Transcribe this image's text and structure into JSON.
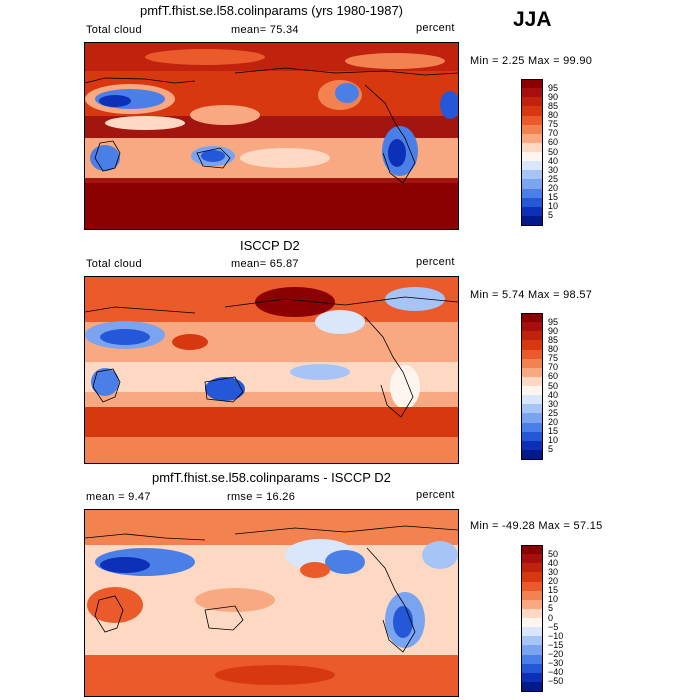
{
  "season": "JJA",
  "panels": [
    {
      "id": "model",
      "title": "pmfT.fhist.se.l58.colinparams (yrs 1980-1987)",
      "left_label": "Total cloud",
      "mid_label": "mean=  75.34",
      "right_label": "percent",
      "minmax": "Min =   2.25 Max =  99.90",
      "levels": [
        "95",
        "90",
        "85",
        "80",
        "75",
        "70",
        "60",
        "50",
        "40",
        "30",
        "25",
        "20",
        "15",
        "10",
        "5"
      ],
      "colors": [
        "#8b0000",
        "#a50f0f",
        "#c0220e",
        "#d8380f",
        "#ea5a2a",
        "#f2824f",
        "#f8a982",
        "#fdd9c4",
        "#fef5ef",
        "#d9e6fb",
        "#a7c4f7",
        "#7aa3f0",
        "#4b7fe8",
        "#2458d8",
        "#0c30b8",
        "#001a8a"
      ]
    },
    {
      "id": "obs",
      "title": "ISCCP D2",
      "left_label": "Total cloud",
      "mid_label": "mean=  65.87",
      "right_label": "percent",
      "minmax": "Min =   5.74 Max =  98.57",
      "levels": [
        "95",
        "90",
        "85",
        "80",
        "75",
        "70",
        "60",
        "50",
        "40",
        "30",
        "25",
        "20",
        "15",
        "10",
        "5"
      ],
      "colors": [
        "#8b0000",
        "#a50f0f",
        "#c0220e",
        "#d8380f",
        "#ea5a2a",
        "#f2824f",
        "#f8a982",
        "#fdd9c4",
        "#fef5ef",
        "#d9e6fb",
        "#a7c4f7",
        "#7aa3f0",
        "#4b7fe8",
        "#2458d8",
        "#0c30b8",
        "#001a8a"
      ]
    },
    {
      "id": "diff",
      "title": "pmfT.fhist.se.l58.colinparams - ISCCP D2",
      "left_label": "mean =   9.47",
      "mid_label": "rmse =  16.26",
      "right_label": "percent",
      "minmax": "Min = -49.28 Max =  57.15",
      "levels": [
        "50",
        "40",
        "30",
        "20",
        "15",
        "10",
        "5",
        "0",
        "−5",
        "−10",
        "−15",
        "−20",
        "−30",
        "−40",
        "−50"
      ],
      "colors": [
        "#8b0000",
        "#a50f0f",
        "#c0220e",
        "#d8380f",
        "#ea5a2a",
        "#f2824f",
        "#f8a982",
        "#fdd9c4",
        "#fef5ef",
        "#d9e6fb",
        "#a7c4f7",
        "#7aa3f0",
        "#4b7fe8",
        "#2458d8",
        "#0c30b8",
        "#001a8a"
      ]
    }
  ]
}
